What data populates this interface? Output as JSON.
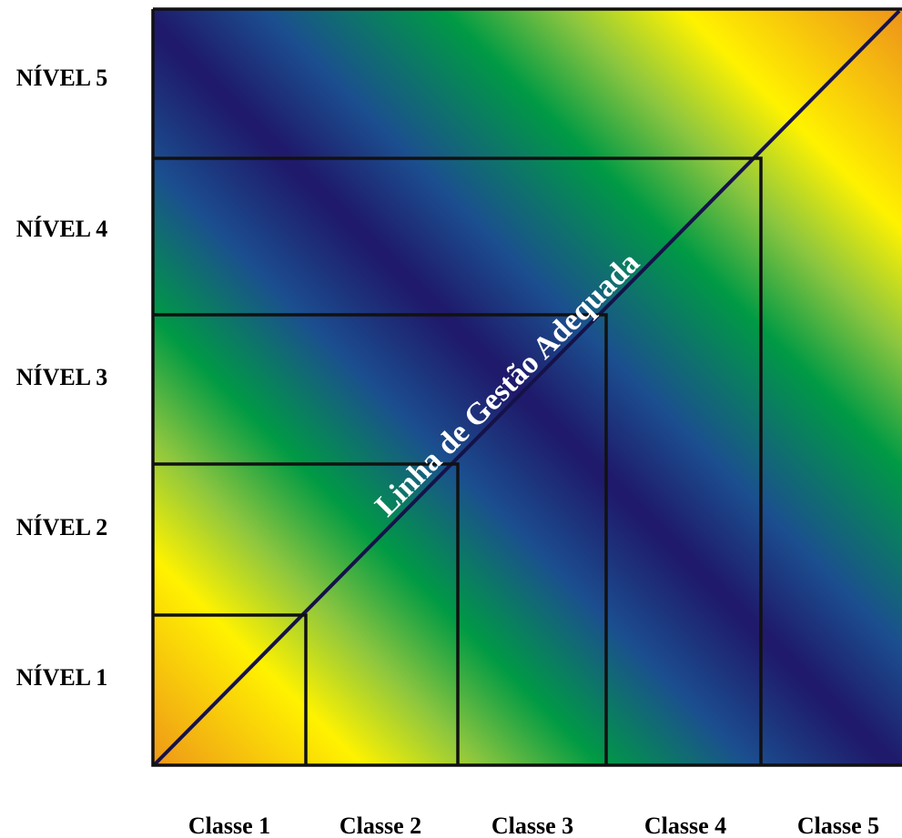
{
  "levels": [
    "NÍVEL 5",
    "NÍVEL 4",
    "NÍVEL 3",
    "NÍVEL 2",
    "NÍVEL 1"
  ],
  "classes": [
    "Classe 1",
    "Classe 2",
    "Classe 3",
    "Classe 4",
    "Classe 5"
  ],
  "diagonal_label": "Linha de Gestão Adequada",
  "colors": {
    "red": "#e0281d",
    "orange": "#ec8a1c",
    "yellow": "#fff200",
    "light_green": "#8cc63f",
    "green": "#009a44",
    "blue": "#1b4f8f",
    "navy": "#1f1a6b",
    "border": "#111111",
    "label_text": "#000000",
    "diagonal_text": "#ffffff"
  }
}
